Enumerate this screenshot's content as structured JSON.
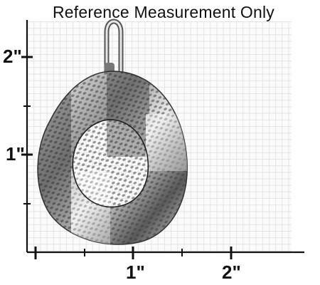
{
  "title": "Reference Measurement Only",
  "y_axis": {
    "labels": [
      "2\"",
      "1\""
    ]
  },
  "x_axis": {
    "labels": [
      "1\"",
      "2\""
    ]
  },
  "colors": {
    "axis": "#111111",
    "grid": "#e4e4e4",
    "metal_light": "#e8e8e8",
    "metal_dark": "#4a4a4a"
  },
  "image": {
    "subject": "hammered-oval-pendant",
    "icon": "pendant-image"
  }
}
